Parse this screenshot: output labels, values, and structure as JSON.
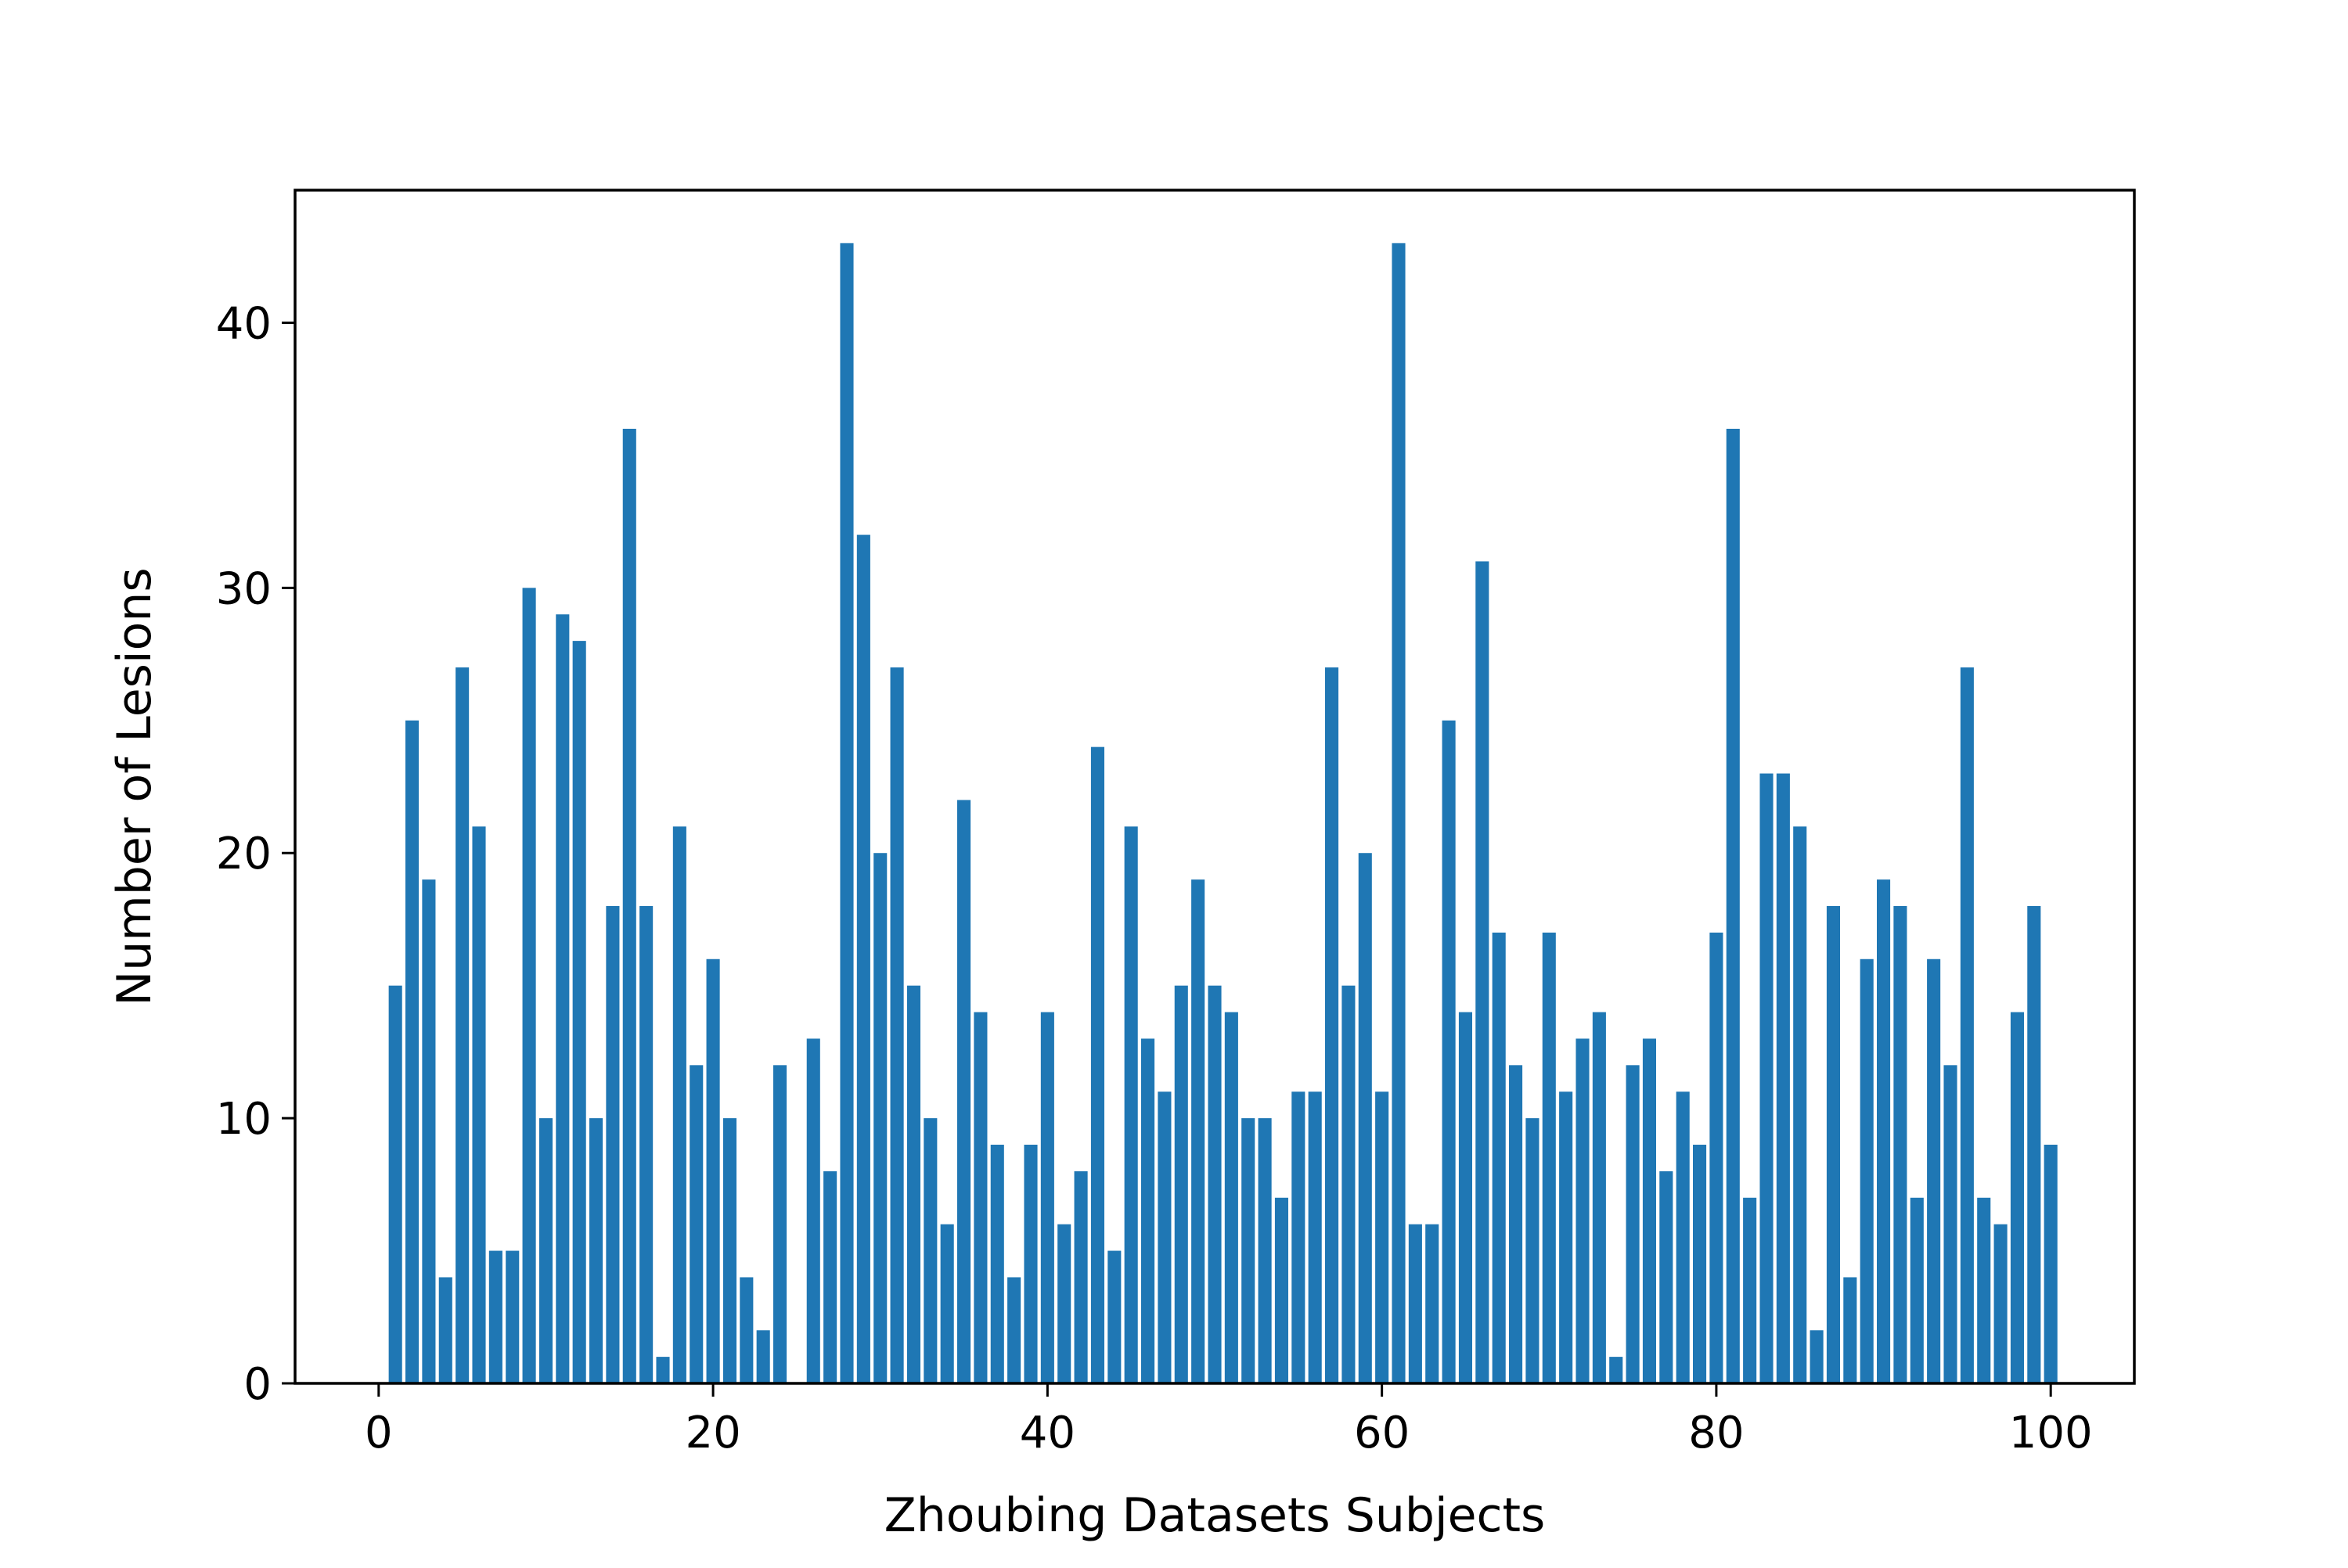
{
  "chart_data": {
    "type": "bar",
    "title": "",
    "xlabel": "Zhoubing Datasets Subjects",
    "ylabel": "Number of Lesions",
    "xlim": [
      -5,
      105
    ],
    "ylim": [
      0,
      45
    ],
    "xticks": [
      0,
      20,
      40,
      60,
      80,
      100
    ],
    "yticks": [
      0,
      10,
      20,
      30,
      40
    ],
    "grid": false,
    "legend": "none",
    "bar_color": "#1f77b4",
    "x": [
      1,
      2,
      3,
      4,
      5,
      6,
      7,
      8,
      9,
      10,
      11,
      12,
      13,
      14,
      15,
      16,
      17,
      18,
      19,
      20,
      21,
      22,
      23,
      24,
      25,
      26,
      27,
      28,
      29,
      30,
      31,
      32,
      33,
      34,
      35,
      36,
      37,
      38,
      39,
      40,
      41,
      42,
      43,
      44,
      45,
      46,
      47,
      48,
      49,
      50,
      51,
      52,
      53,
      54,
      55,
      56,
      57,
      58,
      59,
      60,
      61,
      62,
      63,
      64,
      65,
      66,
      67,
      68,
      69,
      70,
      71,
      72,
      73,
      74,
      75,
      76,
      77,
      78,
      79,
      80,
      81,
      82,
      83,
      84,
      85,
      86,
      87,
      88,
      89,
      90,
      91,
      92,
      93,
      94,
      95,
      96,
      97,
      98,
      99,
      100
    ],
    "values": [
      15,
      25,
      19,
      4,
      27,
      21,
      5,
      5,
      30,
      10,
      29,
      28,
      10,
      18,
      36,
      18,
      1,
      21,
      12,
      16,
      10,
      4,
      2,
      12,
      0,
      13,
      8,
      43,
      32,
      20,
      27,
      15,
      10,
      6,
      22,
      14,
      9,
      4,
      9,
      14,
      6,
      8,
      24,
      5,
      21,
      13,
      11,
      15,
      19,
      15,
      14,
      10,
      10,
      7,
      11,
      11,
      27,
      15,
      20,
      11,
      43,
      6,
      6,
      25,
      14,
      31,
      17,
      12,
      10,
      17,
      11,
      13,
      14,
      1,
      12,
      13,
      8,
      11,
      9,
      17,
      36,
      7,
      23,
      23,
      21,
      2,
      18,
      4,
      16,
      19,
      18,
      7,
      16,
      12,
      27,
      7,
      6,
      14,
      18,
      9
    ]
  }
}
